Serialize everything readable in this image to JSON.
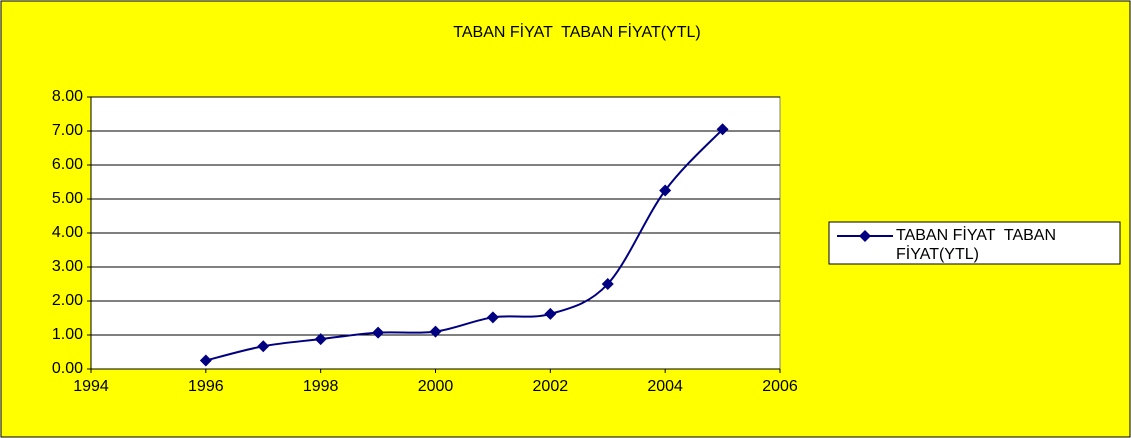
{
  "chart_data": {
    "type": "line",
    "title": "TABAN FİYAT  TABAN FİYAT(YTL)",
    "x": [
      1996,
      1997,
      1998,
      1999,
      2000,
      2001,
      2002,
      2003,
      2004,
      2005
    ],
    "series": [
      {
        "name": "TABAN FİYAT  TABAN FİYAT(YTL)",
        "color": "#000080",
        "values": [
          0.25,
          0.67,
          0.88,
          1.07,
          1.1,
          1.52,
          1.62,
          2.5,
          5.25,
          7.05
        ]
      }
    ],
    "xlim": [
      1994,
      2006
    ],
    "xticks": [
      1994,
      1996,
      1998,
      2000,
      2002,
      2004,
      2006
    ],
    "ylim": [
      0,
      8
    ],
    "yticks": [
      {
        "value": 0,
        "label": "0.00"
      },
      {
        "value": 1,
        "label": "1.00"
      },
      {
        "value": 2,
        "label": "2.00"
      },
      {
        "value": 3,
        "label": "3.00"
      },
      {
        "value": 4,
        "label": "4.00"
      },
      {
        "value": 5,
        "label": "5.00"
      },
      {
        "value": 6,
        "label": "6.00"
      },
      {
        "value": 7,
        "label": "7.00"
      },
      {
        "value": 8,
        "label": "8.00"
      }
    ],
    "grid": true,
    "legend": "right"
  }
}
